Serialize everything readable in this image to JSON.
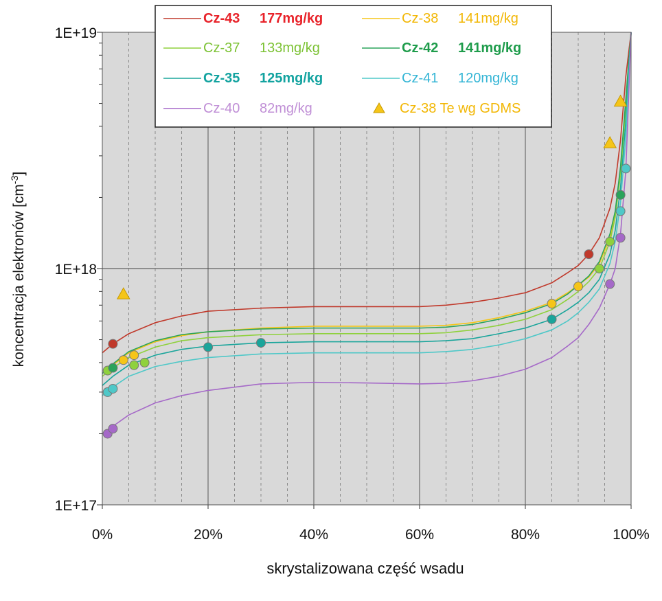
{
  "chart_data": {
    "type": "line",
    "title": "",
    "xlabel": "skrystalizowana część wsadu",
    "ylabel": "koncentracja elektronów [cm",
    "ylabel_sup": "-3",
    "ylabel_end": "]",
    "xlim": [
      0,
      1
    ],
    "ylim": [
      1e+17,
      1e+19
    ],
    "yscale": "log",
    "grid": true,
    "legend_position": "top",
    "x_ticks": [
      {
        "value": 0,
        "label": "0%"
      },
      {
        "value": 0.2,
        "label": "20%"
      },
      {
        "value": 0.4,
        "label": "40%"
      },
      {
        "value": 0.6,
        "label": "60%"
      },
      {
        "value": 0.8,
        "label": "80%"
      },
      {
        "value": 1.0,
        "label": "100%"
      }
    ],
    "y_ticks": [
      {
        "value": 1e+17,
        "label": "1E+17"
      },
      {
        "value": 1e+18,
        "label": "1E+18"
      },
      {
        "value": 1e+19,
        "label": "1E+19"
      }
    ],
    "series": [
      {
        "name": "Cz-43",
        "conc": "177mg/kg",
        "color": "#c0392b",
        "label_color": "#e8232a",
        "bold": true,
        "line_x": [
          0,
          0.02,
          0.05,
          0.1,
          0.15,
          0.2,
          0.3,
          0.4,
          0.5,
          0.6,
          0.65,
          0.7,
          0.75,
          0.8,
          0.85,
          0.88,
          0.9,
          0.92,
          0.94,
          0.96,
          0.97,
          0.98,
          0.99,
          1.0
        ],
        "line_y": [
          4.4e+17,
          4.8e+17,
          5.3e+17,
          5.9e+17,
          6.3e+17,
          6.6e+17,
          6.8e+17,
          6.9e+17,
          6.9e+17,
          6.9e+17,
          7e+17,
          7.2e+17,
          7.5e+17,
          7.9e+17,
          8.7e+17,
          9.6e+17,
          1.03e+18,
          1.15e+18,
          1.35e+18,
          1.8e+18,
          2.3e+18,
          3.5e+18,
          6.5e+18,
          1e+19
        ],
        "points_x": [
          0.02,
          0.92
        ],
        "points_y": [
          4.8e+17,
          1.15e+18
        ]
      },
      {
        "name": "Cz-38",
        "conc": "141mg/kg",
        "color": "#f5c518",
        "label_color": "#f2b705",
        "bold": false,
        "line_x": [
          0,
          0.02,
          0.05,
          0.1,
          0.15,
          0.2,
          0.3,
          0.4,
          0.5,
          0.6,
          0.65,
          0.7,
          0.75,
          0.8,
          0.85,
          0.88,
          0.9,
          0.92,
          0.94,
          0.96,
          0.97,
          0.98,
          0.99,
          1.0
        ],
        "line_y": [
          3.6e+17,
          3.9e+17,
          4.4e+17,
          4.9e+17,
          5.2e+17,
          5.4e+17,
          5.6e+17,
          5.7e+17,
          5.7e+17,
          5.7e+17,
          5.75e+17,
          5.9e+17,
          6.2e+17,
          6.6e+17,
          7.2e+17,
          7.9e+17,
          8.5e+17,
          9.2e+17,
          1.05e+18,
          1.35e+18,
          1.7e+18,
          2.6e+18,
          5e+18,
          1e+19
        ],
        "points_x": [
          0.04,
          0.06,
          0.85,
          0.9
        ],
        "points_y": [
          4.1e+17,
          4.3e+17,
          7.1e+17,
          8.4e+17
        ]
      },
      {
        "name": "Cz-37",
        "conc": "133mg/kg",
        "color": "#8fd13d",
        "label_color": "#7cc234",
        "bold": false,
        "line_x": [
          0,
          0.02,
          0.05,
          0.1,
          0.15,
          0.2,
          0.3,
          0.4,
          0.5,
          0.6,
          0.65,
          0.7,
          0.75,
          0.8,
          0.85,
          0.88,
          0.9,
          0.92,
          0.94,
          0.96,
          0.97,
          0.98,
          0.99,
          1.0
        ],
        "line_y": [
          3.5e+17,
          3.8e+17,
          4.2e+17,
          4.65e+17,
          4.95e+17,
          5.1e+17,
          5.25e+17,
          5.3e+17,
          5.3e+17,
          5.3e+17,
          5.35e+17,
          5.5e+17,
          5.75e+17,
          6.1e+17,
          6.7e+17,
          7.4e+17,
          8e+17,
          8.8e+17,
          1e+18,
          1.3e+18,
          1.65e+18,
          2.5e+18,
          4.8e+18,
          1e+19
        ],
        "points_x": [
          0.01,
          0.06,
          0.08,
          0.94,
          0.96
        ],
        "points_y": [
          3.7e+17,
          3.9e+17,
          4e+17,
          1e+18,
          1.3e+18
        ]
      },
      {
        "name": "Cz-42",
        "conc": "141mg/kg",
        "color": "#2aa35a",
        "label_color": "#1e9c4b",
        "bold": true,
        "line_x": [
          0,
          0.02,
          0.05,
          0.1,
          0.15,
          0.2,
          0.3,
          0.4,
          0.5,
          0.6,
          0.65,
          0.7,
          0.75,
          0.8,
          0.85,
          0.88,
          0.9,
          0.92,
          0.94,
          0.96,
          0.97,
          0.98,
          0.99,
          1.0
        ],
        "line_y": [
          3.6e+17,
          3.95e+17,
          4.45e+17,
          4.95e+17,
          5.25e+17,
          5.4e+17,
          5.55e+17,
          5.6e+17,
          5.6e+17,
          5.6e+17,
          5.65e+17,
          5.8e+17,
          6.1e+17,
          6.5e+17,
          7.1e+17,
          7.8e+17,
          8.5e+17,
          9.3e+17,
          1.07e+18,
          1.4e+18,
          1.75e+18,
          2.7e+18,
          5.2e+18,
          1e+19
        ],
        "points_x": [
          0.02,
          0.98
        ],
        "points_y": [
          3.8e+17,
          2.05e+18
        ]
      },
      {
        "name": "Cz-35",
        "conc": "125mg/kg",
        "color": "#1aa59b",
        "label_color": "#13a3a0",
        "bold": true,
        "line_x": [
          0,
          0.02,
          0.05,
          0.1,
          0.15,
          0.2,
          0.3,
          0.4,
          0.5,
          0.6,
          0.65,
          0.7,
          0.75,
          0.8,
          0.85,
          0.88,
          0.9,
          0.92,
          0.94,
          0.96,
          0.97,
          0.98,
          0.99,
          1.0
        ],
        "line_y": [
          3.2e+17,
          3.5e+17,
          3.9e+17,
          4.3e+17,
          4.55e+17,
          4.7e+17,
          4.85e+17,
          4.9e+17,
          4.9e+17,
          4.9e+17,
          4.95e+17,
          5.05e+17,
          5.3e+17,
          5.6e+17,
          6.1e+17,
          6.7e+17,
          7.2e+17,
          7.9e+17,
          9e+17,
          1.15e+18,
          1.45e+18,
          2.2e+18,
          4.2e+18,
          1e+19
        ],
        "points_x": [
          0.2,
          0.3,
          0.85
        ],
        "points_y": [
          4.65e+17,
          4.85e+17,
          6.1e+17
        ]
      },
      {
        "name": "Cz-41",
        "conc": "120mg/kg",
        "color": "#4fc8c8",
        "label_color": "#33b5d5",
        "bold": false,
        "line_x": [
          0,
          0.02,
          0.05,
          0.1,
          0.15,
          0.2,
          0.3,
          0.4,
          0.5,
          0.6,
          0.65,
          0.7,
          0.75,
          0.8,
          0.85,
          0.88,
          0.9,
          0.92,
          0.94,
          0.96,
          0.97,
          0.98,
          0.99,
          1.0
        ],
        "line_y": [
          2.9e+17,
          3.15e+17,
          3.5e+17,
          3.85e+17,
          4.05e+17,
          4.2e+17,
          4.35e+17,
          4.4e+17,
          4.4e+17,
          4.4e+17,
          4.45e+17,
          4.55e+17,
          4.75e+17,
          5.05e+17,
          5.5e+17,
          6e+17,
          6.5e+17,
          7.2e+17,
          8.2e+17,
          1.05e+18,
          1.3e+18,
          1.9e+18,
          3.6e+18,
          1e+19
        ],
        "points_x": [
          0.01,
          0.02,
          0.98,
          0.99
        ],
        "points_y": [
          3e+17,
          3.1e+17,
          1.75e+18,
          2.65e+18
        ]
      },
      {
        "name": "Cz-40",
        "conc": "82mg/kg",
        "color": "#a569c8",
        "label_color": "#c08fd6",
        "bold": false,
        "line_x": [
          0,
          0.02,
          0.05,
          0.1,
          0.15,
          0.2,
          0.3,
          0.4,
          0.5,
          0.6,
          0.65,
          0.7,
          0.75,
          0.8,
          0.85,
          0.88,
          0.9,
          0.92,
          0.94,
          0.96,
          0.97,
          0.98,
          0.99,
          1.0
        ],
        "line_y": [
          2e+17,
          2.15e+17,
          2.4e+17,
          2.7e+17,
          2.9e+17,
          3.05e+17,
          3.25e+17,
          3.3e+17,
          3.28e+17,
          3.25e+17,
          3.27e+17,
          3.35e+17,
          3.5e+17,
          3.75e+17,
          4.2e+17,
          4.7e+17,
          5.1e+17,
          5.8e+17,
          6.8e+17,
          8.6e+17,
          1e+18,
          1.4e+18,
          2.6e+18,
          1e+19
        ],
        "points_x": [
          0.01,
          0.02,
          0.96,
          0.98
        ],
        "points_y": [
          2e+17,
          2.1e+17,
          8.6e+17,
          1.35e+18
        ]
      }
    ],
    "triangle_series": {
      "name": "Cz-38 Te wg GDMS",
      "color": "#f5c518",
      "label_color": "#f2b705",
      "x": [
        0.04,
        0.96,
        0.98
      ],
      "y": [
        7.8e+17,
        3.4e+18,
        5.1e+18
      ]
    }
  }
}
